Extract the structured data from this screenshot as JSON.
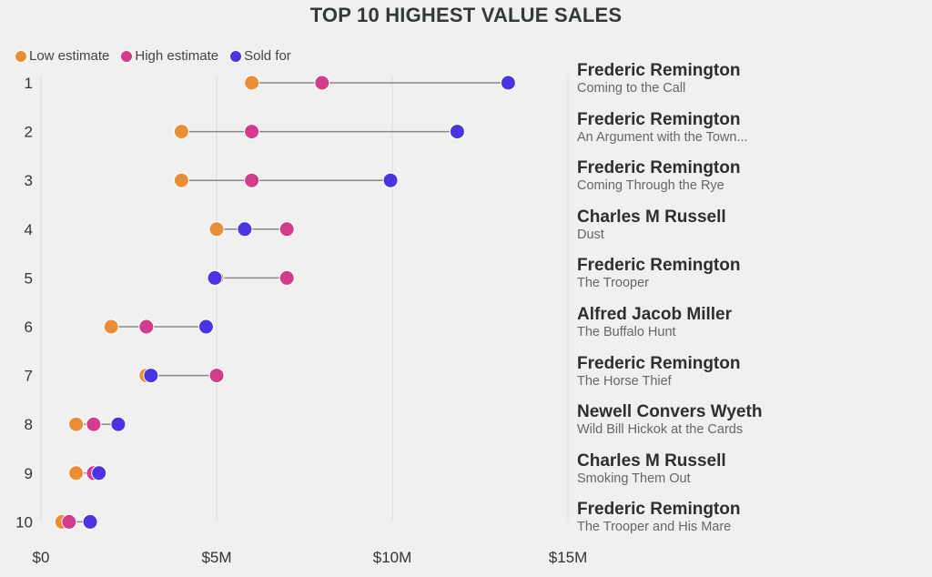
{
  "chart_data": {
    "type": "dot-range",
    "title": "TOP 10 HIGHEST VALUE SALES",
    "xlabel": "",
    "ylabel": "",
    "xlim": [
      0,
      15
    ],
    "x_unit": "$M",
    "x_ticks": [
      0,
      5,
      10,
      15
    ],
    "x_tick_labels": [
      "$0",
      "$5M",
      "$10M",
      "$15M"
    ],
    "grid": true,
    "legend_position": "top-left",
    "legend": [
      {
        "name": "Low estimate",
        "color": "#e98e34"
      },
      {
        "name": "High estimate",
        "color": "#d33b8b"
      },
      {
        "name": "Sold for",
        "color": "#4a33e0"
      }
    ],
    "rows": [
      {
        "rank": "1",
        "artist": "Frederic Remington",
        "work": "Coming to the Call",
        "low": 6.0,
        "high": 8.0,
        "sold": 13.3
      },
      {
        "rank": "2",
        "artist": "Frederic Remington",
        "work": "An Argument with the Town...",
        "low": 4.0,
        "high": 6.0,
        "sold": 11.85
      },
      {
        "rank": "3",
        "artist": "Frederic Remington",
        "work": "Coming Through the Rye",
        "low": 4.0,
        "high": 6.0,
        "sold": 9.95
      },
      {
        "rank": "4",
        "artist": "Charles M Russell",
        "work": "Dust",
        "low": 5.0,
        "high": 7.0,
        "sold": 5.8
      },
      {
        "rank": "5",
        "artist": "Frederic Remington",
        "work": "The Trooper",
        "low": 5.0,
        "high": 7.0,
        "sold": 4.95
      },
      {
        "rank": "6",
        "artist": "Alfred Jacob Miller",
        "work": "The Buffalo Hunt",
        "low": 2.0,
        "high": 3.0,
        "sold": 4.7
      },
      {
        "rank": "7",
        "artist": "Frederic Remington",
        "work": "The Horse Thief",
        "low": 3.0,
        "high": 5.0,
        "sold": 3.13
      },
      {
        "rank": "8",
        "artist": "Newell Convers Wyeth",
        "work": "Wild Bill Hickok at the Cards",
        "low": 1.0,
        "high": 1.5,
        "sold": 2.2
      },
      {
        "rank": "9",
        "artist": "Charles M Russell",
        "work": "Smoking Them Out",
        "low": 1.0,
        "high": 1.5,
        "sold": 1.65
      },
      {
        "rank": "10",
        "artist": "Frederic Remington",
        "work": "The Trooper and His Mare",
        "low": 0.6,
        "high": 0.8,
        "sold": 1.4
      }
    ]
  }
}
